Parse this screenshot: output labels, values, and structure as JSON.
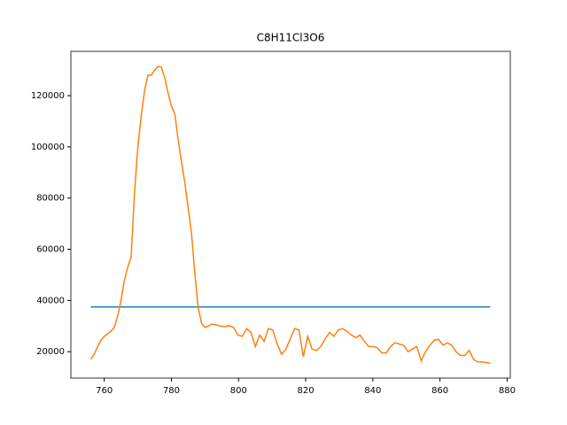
{
  "chart_data": {
    "type": "line",
    "title": "C8H11Cl3O6",
    "xlim": [
      750.05,
      880.95
    ],
    "ylim": [
      9700,
      137300
    ],
    "xticks": [
      760,
      780,
      800,
      820,
      840,
      860,
      880
    ],
    "yticks": [
      20000,
      40000,
      60000,
      80000,
      100000,
      120000
    ],
    "series": [
      {
        "color": "#1f77b4",
        "x": [
          756,
          875
        ],
        "values": [
          37500,
          37500
        ]
      },
      {
        "color": "#ff7f0e",
        "x": [
          756,
          757,
          758,
          759,
          760,
          761,
          762,
          763,
          764,
          765,
          766,
          767,
          768,
          769,
          770,
          771,
          772,
          773,
          774,
          775,
          776,
          777,
          778,
          779,
          780,
          781,
          782,
          783,
          784,
          785,
          786,
          787,
          788,
          789,
          790,
          791,
          792,
          793.3,
          794.6,
          795.9,
          797.2,
          798.5,
          799.8,
          801.1,
          802.4,
          803.7,
          805,
          806.3,
          807.6,
          808.9,
          810.2,
          811.5,
          812.8,
          814.1,
          815.4,
          816.7,
          818,
          819.3,
          820.6,
          821.9,
          823.2,
          824.5,
          825.8,
          827.1,
          828.4,
          829.7,
          831,
          832.3,
          833.6,
          834.9,
          836.2,
          837.5,
          838.8,
          840.1,
          841.4,
          842.7,
          844,
          845.3,
          846.6,
          847.9,
          849.2,
          850.5,
          851.8,
          853.1,
          854.4,
          855.7,
          857,
          858.3,
          859.6,
          860.9,
          862.2,
          863.5,
          864.8,
          866.1,
          867.4,
          868.7,
          870,
          871.3,
          872.6,
          875
        ],
        "values": [
          17000,
          19000,
          22000,
          24500,
          26000,
          27000,
          28000,
          29500,
          34000,
          40000,
          48000,
          53000,
          57000,
          82000,
          100000,
          112000,
          122000,
          128000,
          128000,
          130000,
          131400,
          131200,
          127000,
          121000,
          116000,
          113000,
          103000,
          94000,
          86000,
          76000,
          66000,
          50000,
          37000,
          31000,
          29500,
          30000,
          30800,
          30500,
          30000,
          29800,
          30200,
          29500,
          26500,
          26000,
          29000,
          27500,
          22000,
          26500,
          24000,
          29000,
          28500,
          23000,
          19000,
          21000,
          25000,
          29000,
          28500,
          18000,
          26000,
          21000,
          20500,
          22000,
          25000,
          27500,
          26000,
          28500,
          29000,
          28000,
          26500,
          25500,
          26500,
          24000,
          22000,
          22000,
          21500,
          19500,
          19500,
          22000,
          23500,
          23000,
          22500,
          20000,
          21000,
          22000,
          16500,
          20000,
          22500,
          24500,
          24800,
          22500,
          23500,
          22500,
          20000,
          18500,
          18500,
          20500,
          17000,
          16000,
          16000,
          15500
        ]
      }
    ]
  }
}
